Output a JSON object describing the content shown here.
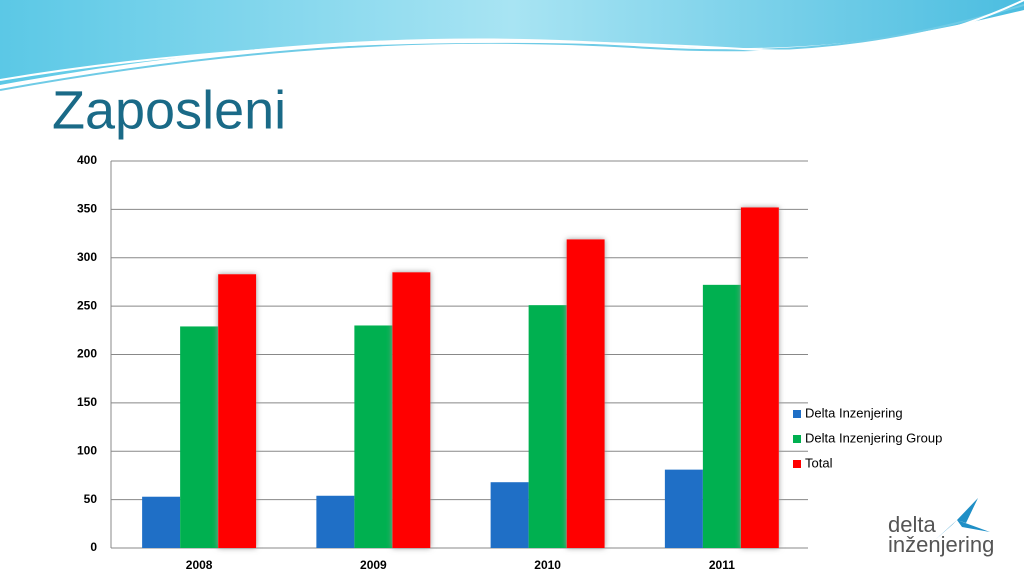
{
  "chart_data": {
    "type": "bar",
    "title": "Zaposleni",
    "categories": [
      "2008",
      "2009",
      "2010",
      "2011"
    ],
    "series": [
      {
        "name": "Delta Inzenjering",
        "color": "#1f6fc6",
        "values": [
          53,
          54,
          68,
          81
        ]
      },
      {
        "name": "Delta Inzenjering Group",
        "color": "#00b050",
        "values": [
          229,
          230,
          251,
          272
        ]
      },
      {
        "name": "Total",
        "color": "#ff0000",
        "values": [
          283,
          285,
          319,
          352
        ]
      }
    ],
    "ylim": [
      0,
      400
    ],
    "yticks": [
      0,
      50,
      100,
      150,
      200,
      250,
      300,
      350,
      400
    ],
    "grid": true,
    "legend": "right"
  },
  "logo": {
    "line1": "delta",
    "line2": "inženjering"
  }
}
